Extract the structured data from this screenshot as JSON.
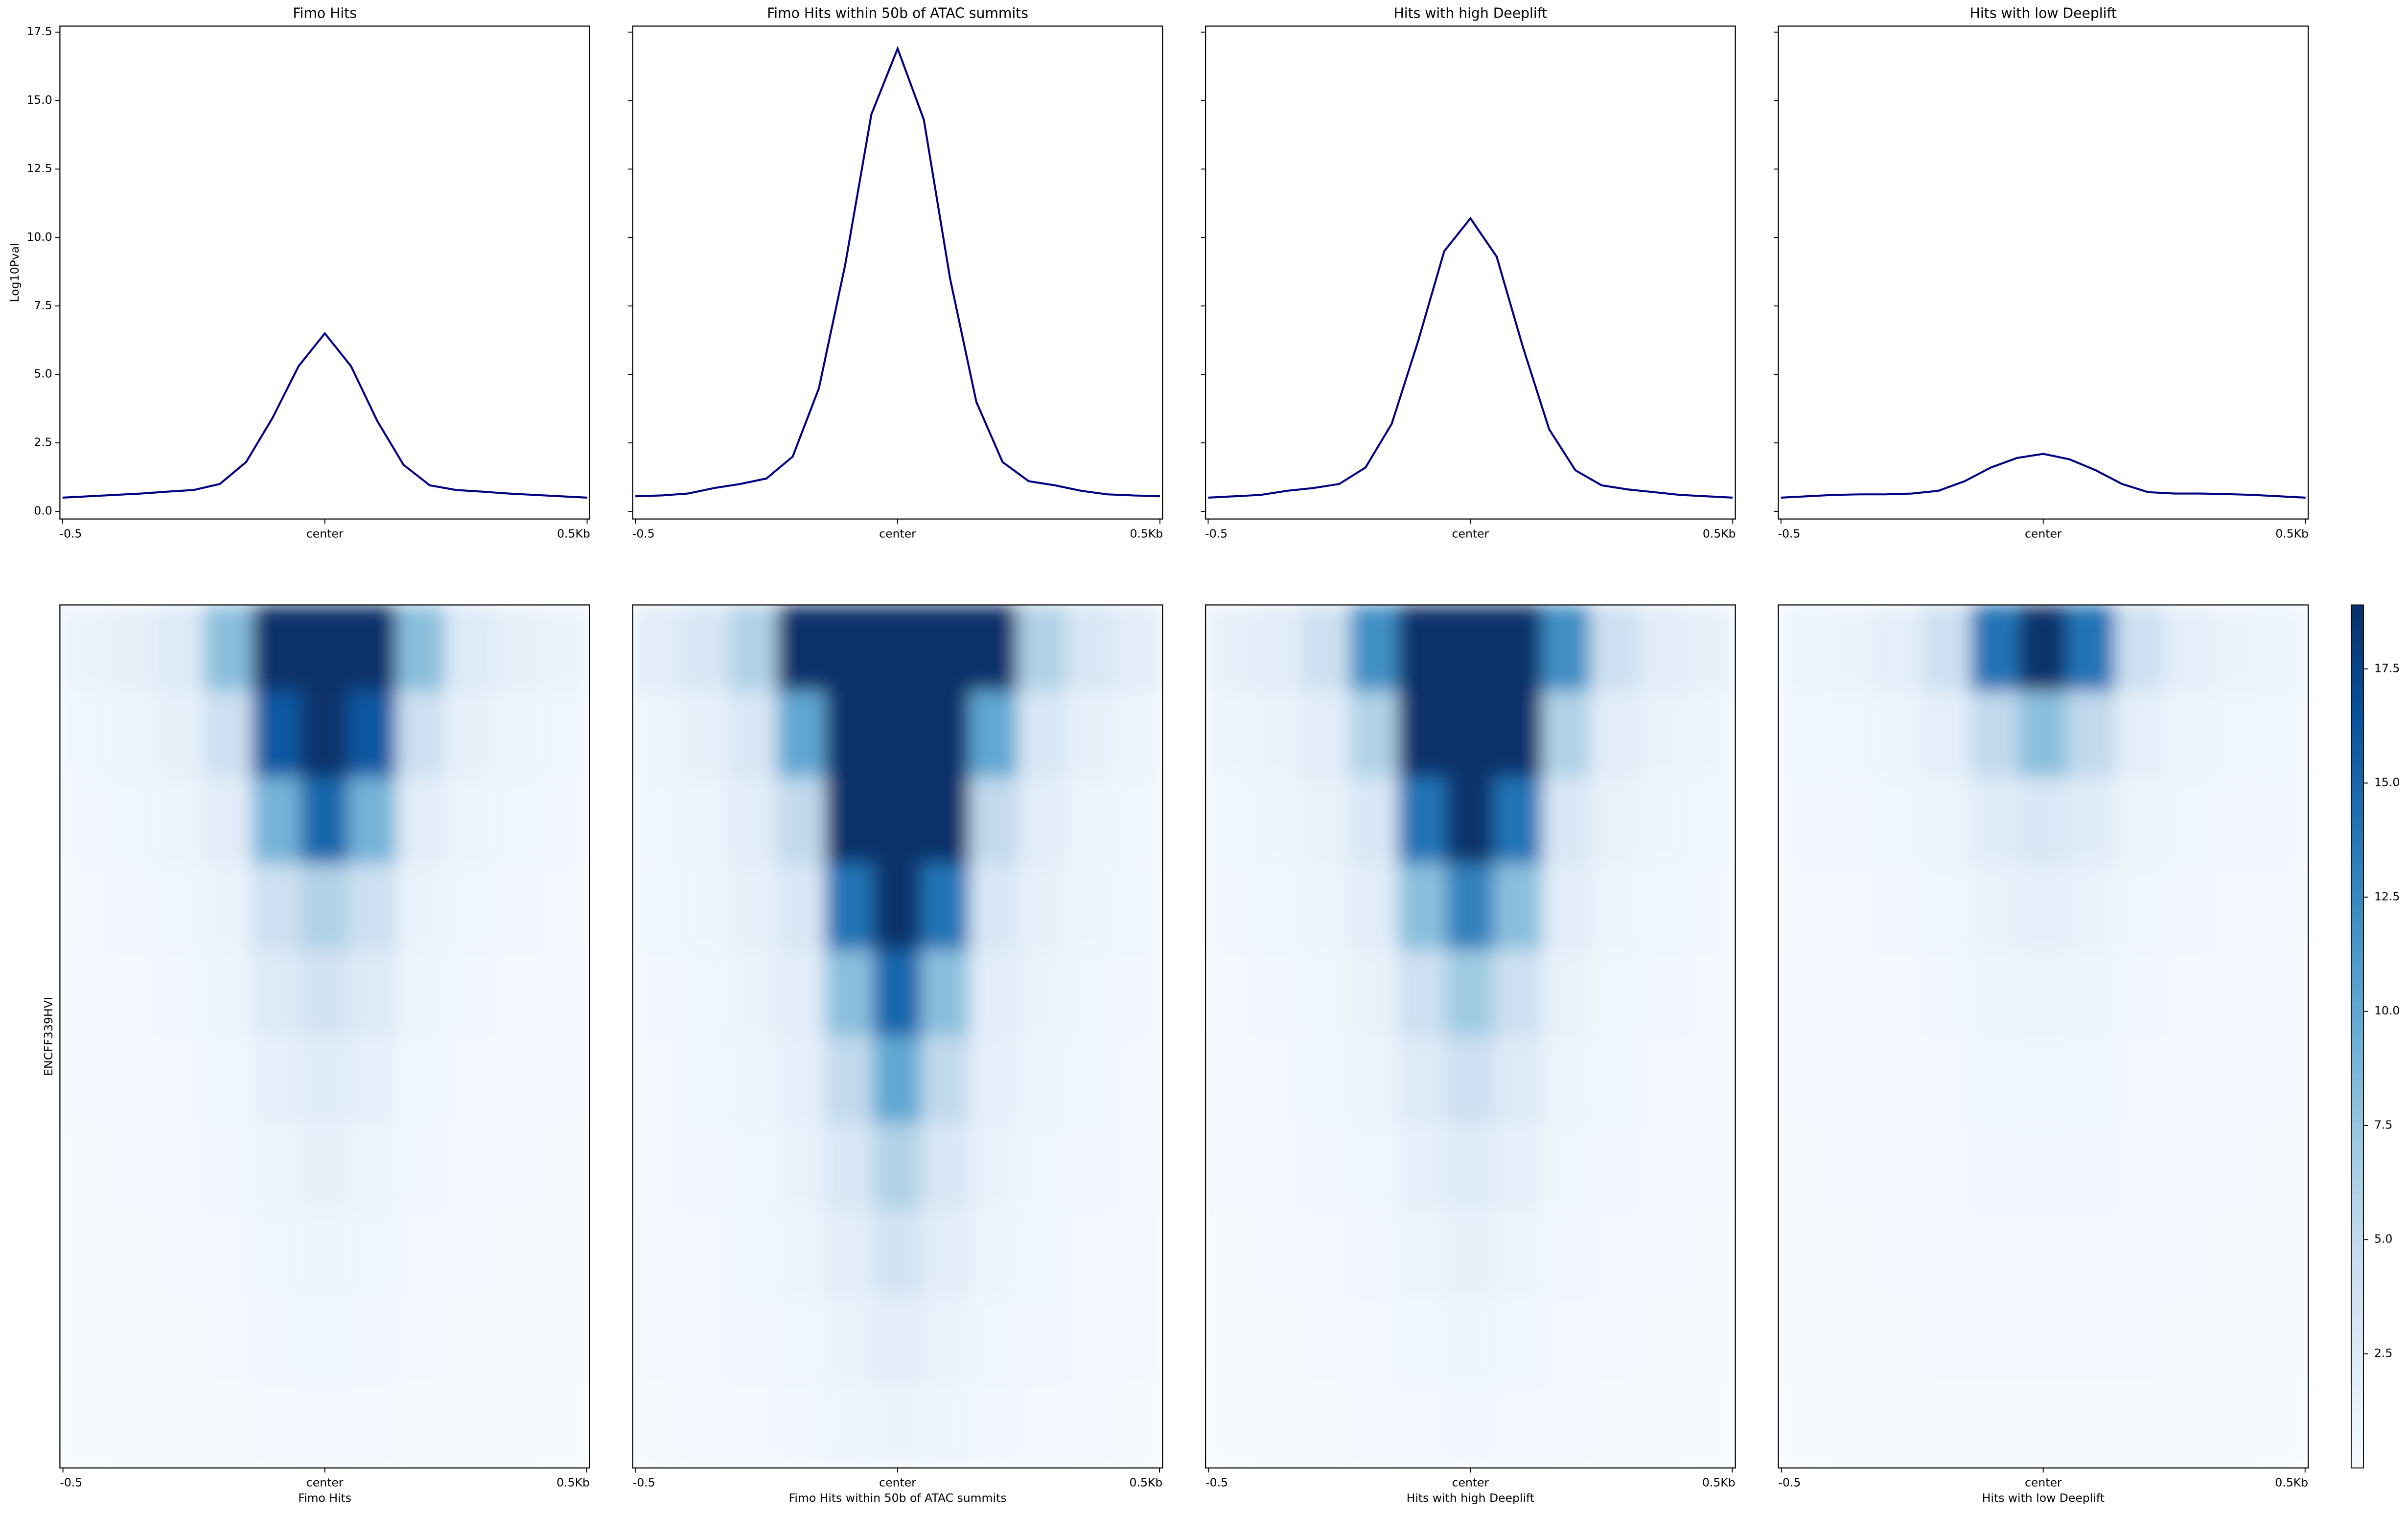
{
  "chart_data": [
    {
      "type": "line",
      "title": "Fimo Hits",
      "ylabel": "Log10Pval",
      "ytick_labels": true,
      "x": [
        -0.5,
        -0.45,
        -0.4,
        -0.35,
        -0.3,
        -0.25,
        -0.2,
        -0.15,
        -0.1,
        -0.05,
        0,
        0.05,
        0.1,
        0.15,
        0.2,
        0.25,
        0.3,
        0.35,
        0.4,
        0.45,
        0.5
      ],
      "series": [
        {
          "color": "#000080",
          "values": [
            0.5,
            0.55,
            0.6,
            0.65,
            0.72,
            0.78,
            1.0,
            1.8,
            3.4,
            5.3,
            6.5,
            5.3,
            3.3,
            1.7,
            0.95,
            0.78,
            0.72,
            0.65,
            0.6,
            0.55,
            0.5
          ]
        }
      ],
      "xlim": [
        -0.505,
        0.505
      ],
      "xticks": [
        -0.5,
        {
          "value": 0,
          "label": "center"
        },
        {
          "value": 0.5,
          "label": "0.5Kb"
        }
      ],
      "ylim": [
        -0.28,
        17.72
      ],
      "yticks": [
        {
          "value": 0,
          "label": "0.0"
        },
        2.5,
        {
          "value": 5,
          "label": "5.0"
        },
        7.5,
        {
          "value": 10,
          "label": "10.0"
        },
        12.5,
        {
          "value": 15,
          "label": "15.0"
        },
        17.5
      ]
    },
    {
      "type": "line",
      "title": "Fimo Hits within 50b of ATAC summits",
      "ytick_labels": false,
      "x": [
        -0.5,
        -0.45,
        -0.4,
        -0.35,
        -0.3,
        -0.25,
        -0.2,
        -0.15,
        -0.1,
        -0.05,
        0,
        0.05,
        0.1,
        0.15,
        0.2,
        0.25,
        0.3,
        0.35,
        0.4,
        0.45,
        0.5
      ],
      "series": [
        {
          "color": "#000080",
          "values": [
            0.55,
            0.58,
            0.65,
            0.85,
            1.0,
            1.2,
            2.0,
            4.5,
            9.0,
            14.5,
            16.9,
            14.3,
            8.5,
            4.0,
            1.8,
            1.1,
            0.95,
            0.75,
            0.62,
            0.58,
            0.55
          ]
        }
      ],
      "xlim": [
        -0.505,
        0.505
      ],
      "xticks": [
        -0.5,
        {
          "value": 0,
          "label": "center"
        },
        {
          "value": 0.5,
          "label": "0.5Kb"
        }
      ],
      "ylim": [
        -0.28,
        17.72
      ],
      "yticks": [
        0,
        2.5,
        5,
        7.5,
        10,
        12.5,
        15,
        17.5
      ]
    },
    {
      "type": "line",
      "title": "Hits with high Deeplift",
      "ytick_labels": false,
      "x": [
        -0.5,
        -0.45,
        -0.4,
        -0.35,
        -0.3,
        -0.25,
        -0.2,
        -0.15,
        -0.1,
        -0.05,
        0,
        0.05,
        0.1,
        0.15,
        0.2,
        0.25,
        0.3,
        0.35,
        0.4,
        0.45,
        0.5
      ],
      "series": [
        {
          "color": "#000080",
          "values": [
            0.5,
            0.55,
            0.6,
            0.75,
            0.85,
            1.0,
            1.6,
            3.2,
            6.2,
            9.5,
            10.7,
            9.3,
            6.0,
            3.0,
            1.5,
            0.95,
            0.8,
            0.7,
            0.6,
            0.55,
            0.5
          ]
        }
      ],
      "xlim": [
        -0.505,
        0.505
      ],
      "xticks": [
        -0.5,
        {
          "value": 0,
          "label": "center"
        },
        {
          "value": 0.5,
          "label": "0.5Kb"
        }
      ],
      "ylim": [
        -0.28,
        17.72
      ],
      "yticks": [
        0,
        2.5,
        5,
        7.5,
        10,
        12.5,
        15,
        17.5
      ]
    },
    {
      "type": "line",
      "title": "Hits with low Deeplift",
      "ytick_labels": false,
      "x": [
        -0.5,
        -0.45,
        -0.4,
        -0.35,
        -0.3,
        -0.25,
        -0.2,
        -0.15,
        -0.1,
        -0.05,
        0,
        0.05,
        0.1,
        0.15,
        0.2,
        0.25,
        0.3,
        0.35,
        0.4,
        0.45,
        0.5
      ],
      "series": [
        {
          "color": "#000080",
          "values": [
            0.5,
            0.55,
            0.6,
            0.62,
            0.62,
            0.65,
            0.75,
            1.1,
            1.6,
            1.95,
            2.1,
            1.9,
            1.5,
            1.0,
            0.7,
            0.65,
            0.65,
            0.63,
            0.6,
            0.55,
            0.5
          ]
        }
      ],
      "xlim": [
        -0.505,
        0.505
      ],
      "xticks": [
        -0.5,
        {
          "value": 0,
          "label": "center"
        },
        {
          "value": 0.5,
          "label": "0.5Kb"
        }
      ],
      "ylim": [
        -0.28,
        17.72
      ],
      "yticks": [
        0,
        2.5,
        5,
        7.5,
        10,
        12.5,
        15,
        17.5
      ]
    },
    {
      "type": "heatmap",
      "xlabel": "Fimo Hits",
      "ylabel": "ENCFF339HVI",
      "colormap": "Blues",
      "zlim": [
        0,
        18.9
      ],
      "x": [
        -0.5,
        -0.4,
        -0.3,
        -0.2,
        -0.1,
        0,
        0.1,
        0.2,
        0.3,
        0.4,
        0.5
      ],
      "xlim": [
        -0.55,
        0.55
      ],
      "xticks": [
        -0.5,
        {
          "value": 0,
          "label": "center"
        },
        {
          "value": 0.5,
          "label": "0.5Kb"
        }
      ],
      "z": [
        [
          1.2,
          1.5,
          2.5,
          8,
          18.9,
          18.9,
          18.9,
          8,
          2.5,
          1.5,
          1.2
        ],
        [
          0.8,
          1,
          1.5,
          4,
          16,
          18.9,
          16,
          4,
          1.5,
          1,
          0.8
        ],
        [
          0.6,
          0.8,
          1,
          2,
          9,
          15,
          9,
          2,
          1,
          0.8,
          0.6
        ],
        [
          0.5,
          0.6,
          0.8,
          1.2,
          4,
          6,
          4,
          1.2,
          0.8,
          0.6,
          0.5
        ],
        [
          0.4,
          0.5,
          0.6,
          0.9,
          2.5,
          3.5,
          2.5,
          0.9,
          0.6,
          0.5,
          0.4
        ],
        [
          0.4,
          0.4,
          0.5,
          0.7,
          1.6,
          2.2,
          1.6,
          0.7,
          0.5,
          0.4,
          0.4
        ],
        [
          0.3,
          0.4,
          0.4,
          0.6,
          1.1,
          1.5,
          1.1,
          0.6,
          0.4,
          0.4,
          0.3
        ],
        [
          0.3,
          0.3,
          0.4,
          0.5,
          0.8,
          1,
          0.8,
          0.5,
          0.4,
          0.3,
          0.3
        ],
        [
          0.3,
          0.3,
          0.3,
          0.4,
          0.6,
          0.7,
          0.6,
          0.4,
          0.3,
          0.3,
          0.3
        ],
        [
          0.2,
          0.3,
          0.3,
          0.3,
          0.4,
          0.5,
          0.4,
          0.3,
          0.3,
          0.3,
          0.2
        ]
      ]
    },
    {
      "type": "heatmap",
      "xlabel": "Fimo Hits within 50b of ATAC summits",
      "colormap": "Blues",
      "zlim": [
        0,
        18.9
      ],
      "x": [
        -0.5,
        -0.4,
        -0.3,
        -0.2,
        -0.1,
        0,
        0.1,
        0.2,
        0.3,
        0.4,
        0.5
      ],
      "xlim": [
        -0.55,
        0.55
      ],
      "xticks": [
        -0.5,
        {
          "value": 0,
          "label": "center"
        },
        {
          "value": 0.5,
          "label": "0.5Kb"
        }
      ],
      "z": [
        [
          2,
          3,
          6,
          18.9,
          18.9,
          18.9,
          18.9,
          18.9,
          6,
          3,
          2
        ],
        [
          1,
          1.5,
          3,
          10,
          18.9,
          18.9,
          18.9,
          10,
          3,
          1.5,
          1
        ],
        [
          0.8,
          1,
          2,
          5,
          18.9,
          18.9,
          18.9,
          5,
          2,
          1,
          0.8
        ],
        [
          0.7,
          0.9,
          1.5,
          3,
          14,
          18.9,
          14,
          3,
          1.5,
          0.9,
          0.7
        ],
        [
          0.6,
          0.8,
          1.2,
          2,
          8,
          15,
          8,
          2,
          1.2,
          0.8,
          0.6
        ],
        [
          0.5,
          0.7,
          1,
          1.6,
          5,
          10,
          5,
          1.6,
          1,
          0.7,
          0.5
        ],
        [
          0.5,
          0.6,
          0.8,
          1.3,
          3,
          6,
          3,
          1.3,
          0.8,
          0.6,
          0.5
        ],
        [
          0.4,
          0.5,
          0.7,
          1,
          2,
          3.5,
          2,
          1,
          0.7,
          0.5,
          0.4
        ],
        [
          0.4,
          0.5,
          0.6,
          0.8,
          1.3,
          2,
          1.3,
          0.8,
          0.6,
          0.5,
          0.4
        ],
        [
          0.3,
          0.4,
          0.5,
          0.6,
          0.9,
          1.2,
          0.9,
          0.6,
          0.5,
          0.4,
          0.3
        ]
      ]
    },
    {
      "type": "heatmap",
      "xlabel": "Hits with high Deeplift",
      "colormap": "Blues",
      "zlim": [
        0,
        18.9
      ],
      "x": [
        -0.5,
        -0.4,
        -0.3,
        -0.2,
        -0.1,
        0,
        0.1,
        0.2,
        0.3,
        0.4,
        0.5
      ],
      "xlim": [
        -0.55,
        0.55
      ],
      "xticks": [
        -0.5,
        {
          "value": 0,
          "label": "center"
        },
        {
          "value": 0.5,
          "label": "0.5Kb"
        }
      ],
      "z": [
        [
          1.5,
          2,
          4,
          12,
          18.9,
          18.9,
          18.9,
          12,
          4,
          2,
          1.5
        ],
        [
          0.9,
          1.2,
          2,
          6,
          18.9,
          18.9,
          18.9,
          6,
          2,
          1.2,
          0.9
        ],
        [
          0.7,
          0.9,
          1.4,
          3,
          14,
          18.9,
          14,
          3,
          1.4,
          0.9,
          0.7
        ],
        [
          0.6,
          0.7,
          1,
          2,
          8,
          13,
          8,
          2,
          1,
          0.7,
          0.6
        ],
        [
          0.5,
          0.6,
          0.8,
          1.4,
          4,
          7,
          4,
          1.4,
          0.8,
          0.6,
          0.5
        ],
        [
          0.4,
          0.5,
          0.7,
          1,
          2.5,
          4,
          2.5,
          1,
          0.7,
          0.5,
          0.4
        ],
        [
          0.4,
          0.5,
          0.6,
          0.8,
          1.6,
          2.4,
          1.6,
          0.8,
          0.6,
          0.5,
          0.4
        ],
        [
          0.3,
          0.4,
          0.5,
          0.6,
          1.1,
          1.5,
          1.1,
          0.6,
          0.5,
          0.4,
          0.3
        ],
        [
          0.3,
          0.3,
          0.4,
          0.5,
          0.7,
          0.9,
          0.7,
          0.5,
          0.4,
          0.3,
          0.3
        ],
        [
          0.2,
          0.3,
          0.3,
          0.4,
          0.5,
          0.6,
          0.5,
          0.4,
          0.3,
          0.3,
          0.2
        ]
      ]
    },
    {
      "type": "heatmap",
      "xlabel": "Hits with low Deeplift",
      "colormap": "Blues",
      "zlim": [
        0,
        18.9
      ],
      "x": [
        -0.5,
        -0.4,
        -0.3,
        -0.2,
        -0.1,
        0,
        0.1,
        0.2,
        0.3,
        0.4,
        0.5
      ],
      "xlim": [
        -0.55,
        0.55
      ],
      "xticks": [
        -0.5,
        {
          "value": 0,
          "label": "center"
        },
        {
          "value": 0.5,
          "label": "0.5Kb"
        }
      ],
      "z": [
        [
          1,
          1.2,
          1.8,
          4,
          14,
          18.9,
          14,
          4,
          1.8,
          1.2,
          1
        ],
        [
          0.7,
          0.8,
          1,
          1.8,
          5,
          8,
          5,
          1.8,
          1,
          0.8,
          0.7
        ],
        [
          0.6,
          0.6,
          0.8,
          1.1,
          2.2,
          3,
          2.2,
          1.1,
          0.8,
          0.6,
          0.6
        ],
        [
          0.5,
          0.5,
          0.6,
          0.8,
          1.3,
          1.7,
          1.3,
          0.8,
          0.6,
          0.5,
          0.5
        ],
        [
          0.4,
          0.5,
          0.5,
          0.6,
          0.9,
          1.1,
          0.9,
          0.6,
          0.5,
          0.5,
          0.4
        ],
        [
          0.4,
          0.4,
          0.5,
          0.5,
          0.7,
          0.8,
          0.7,
          0.5,
          0.5,
          0.4,
          0.4
        ],
        [
          0.3,
          0.4,
          0.4,
          0.5,
          0.6,
          0.6,
          0.6,
          0.5,
          0.4,
          0.4,
          0.3
        ],
        [
          0.3,
          0.3,
          0.4,
          0.4,
          0.5,
          0.5,
          0.5,
          0.4,
          0.4,
          0.3,
          0.3
        ],
        [
          0.3,
          0.3,
          0.3,
          0.4,
          0.4,
          0.4,
          0.4,
          0.4,
          0.3,
          0.3,
          0.3
        ],
        [
          0.2,
          0.3,
          0.3,
          0.3,
          0.3,
          0.3,
          0.3,
          0.3,
          0.3,
          0.3,
          0.2
        ]
      ]
    },
    {
      "type": "colorbar",
      "colormap": "Blues",
      "zlim": [
        0,
        18.9
      ],
      "zticks": [
        2.5,
        {
          "value": 5,
          "label": "5.0"
        },
        7.5,
        {
          "value": 10,
          "label": "10.0"
        },
        12.5,
        {
          "value": 15,
          "label": "15.0"
        },
        17.5
      ]
    }
  ]
}
